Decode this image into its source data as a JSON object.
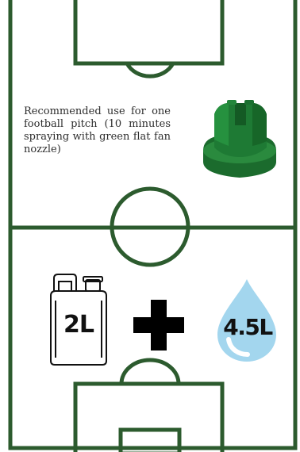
{
  "caption": {
    "text": "Recommended use for one football pitch (10 minutes spraying with green flat fan nozzle)"
  },
  "product": {
    "concentrate_label": "2L",
    "operator_symbol": "plus-icon",
    "water_label": "4.5L"
  },
  "icons": {
    "nozzle": "flat-fan-nozzle-icon",
    "container": "jerrycan-icon",
    "water": "water-drop-icon"
  },
  "colors": {
    "pitch_line": "#2c5b2e",
    "nozzle_green": "#1e7a34",
    "water_blue": "#a3d6ee",
    "background": "#ffffff"
  }
}
